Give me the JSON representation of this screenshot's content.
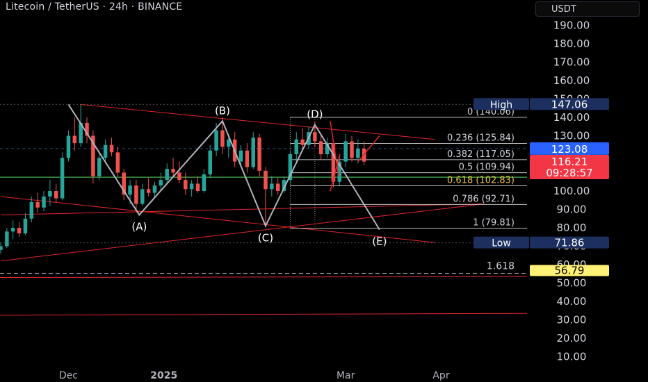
{
  "header": {
    "title": "Litecoin / TetherUS · 24h · BINANCE",
    "currency": "USDT"
  },
  "colors": {
    "background": "#000000",
    "up": "#26a69a",
    "down": "#ef5350",
    "trendline": "#e0262d",
    "wave_line": "#b2b5be",
    "fib_line": "#bfbfbf",
    "green_line": "#4caf50",
    "high_label": "#1c2f5e",
    "price_label": "#2962ff",
    "current_label": "#f23645",
    "fib_ext_label": "#fff176"
  },
  "chart_data": {
    "type": "candlestick",
    "title": "Litecoin / TetherUS · 24h · BINANCE",
    "y_axis": {
      "ticks": [
        10,
        20,
        30,
        40,
        50,
        60,
        70,
        80,
        90,
        100,
        110,
        120,
        130,
        140,
        150,
        160,
        170,
        180,
        190
      ],
      "tick_labels": [
        "10.00",
        "20.00",
        "30.00",
        "40.00",
        "50.00",
        "60.00",
        "70.00",
        "80.00",
        "90.00",
        "100.00",
        "110.00",
        "120.00",
        "130.00",
        "140.00",
        "150.00",
        "160.00",
        "170.00",
        "180.00",
        "190.00"
      ],
      "range": [
        5,
        198
      ]
    },
    "x_axis": {
      "labels": [
        {
          "text": "Dec",
          "date": "2024-12-01",
          "bold": false
        },
        {
          "text": "2025",
          "date": "2025-01-01",
          "bold": true
        },
        {
          "text": "Mar",
          "date": "2025-03-01",
          "bold": false
        },
        {
          "text": "Apr",
          "date": "2025-04-01",
          "bold": false
        }
      ],
      "range": [
        "2024-11-09",
        "2025-05-01"
      ]
    },
    "price_labels": [
      {
        "name": "High",
        "value": "147.06",
        "price": 147.06
      },
      {
        "name": "",
        "value": "123.08",
        "price": 123.08
      },
      {
        "name": "",
        "value": "116.21",
        "price": 116.21,
        "countdown": "09:28:57"
      },
      {
        "name": "Low",
        "value": "71.86",
        "price": 71.86
      },
      {
        "name": "",
        "value": "56.79",
        "price": 56.79
      }
    ],
    "fibonacci": [
      {
        "label": "0 (140.06)",
        "price": 140.06
      },
      {
        "label": "0.236 (125.84)",
        "price": 125.84
      },
      {
        "label": "0.382 (117.05)",
        "price": 117.05
      },
      {
        "label": "0.5 (109.94)",
        "price": 109.94
      },
      {
        "label": "0.618 (102.83)",
        "price": 102.83,
        "highlight": true
      },
      {
        "label": "0.786 (92.71)",
        "price": 92.71
      },
      {
        "label": "1 (79.81)",
        "price": 79.81
      }
    ],
    "fib_extension": {
      "label": "1.618",
      "price": 56.79
    },
    "waves": [
      {
        "label": "(A)",
        "date": "2024-12-24",
        "price": 87
      },
      {
        "label": "(B)",
        "date": "2025-01-20",
        "price": 138
      },
      {
        "label": "(C)",
        "date": "2025-02-03",
        "price": 81
      },
      {
        "label": "(D)",
        "date": "2025-02-19",
        "price": 136
      },
      {
        "label": "(E)",
        "date": "2025-03-12",
        "price": 79
      }
    ],
    "candles": [
      {
        "d": "2024-11-09",
        "o": 68,
        "h": 72,
        "l": 66,
        "c": 70
      },
      {
        "d": "2024-11-11",
        "o": 70,
        "h": 80,
        "l": 69,
        "c": 78
      },
      {
        "d": "2024-11-13",
        "o": 78,
        "h": 84,
        "l": 74,
        "c": 80
      },
      {
        "d": "2024-11-15",
        "o": 80,
        "h": 83,
        "l": 75,
        "c": 77
      },
      {
        "d": "2024-11-17",
        "o": 77,
        "h": 88,
        "l": 76,
        "c": 85
      },
      {
        "d": "2024-11-19",
        "o": 85,
        "h": 97,
        "l": 83,
        "c": 94
      },
      {
        "d": "2024-11-21",
        "o": 94,
        "h": 99,
        "l": 88,
        "c": 91
      },
      {
        "d": "2024-11-23",
        "o": 91,
        "h": 100,
        "l": 89,
        "c": 97
      },
      {
        "d": "2024-11-25",
        "o": 97,
        "h": 106,
        "l": 92,
        "c": 100
      },
      {
        "d": "2024-11-27",
        "o": 100,
        "h": 104,
        "l": 94,
        "c": 96
      },
      {
        "d": "2024-11-29",
        "o": 96,
        "h": 121,
        "l": 95,
        "c": 118
      },
      {
        "d": "2024-12-01",
        "o": 118,
        "h": 133,
        "l": 116,
        "c": 130
      },
      {
        "d": "2024-12-03",
        "o": 130,
        "h": 140,
        "l": 122,
        "c": 126
      },
      {
        "d": "2024-12-05",
        "o": 126,
        "h": 147,
        "l": 124,
        "c": 137
      },
      {
        "d": "2024-12-07",
        "o": 137,
        "h": 140,
        "l": 126,
        "c": 130
      },
      {
        "d": "2024-12-09",
        "o": 130,
        "h": 133,
        "l": 104,
        "c": 108
      },
      {
        "d": "2024-12-11",
        "o": 108,
        "h": 121,
        "l": 106,
        "c": 118
      },
      {
        "d": "2024-12-13",
        "o": 118,
        "h": 128,
        "l": 115,
        "c": 125
      },
      {
        "d": "2024-12-15",
        "o": 125,
        "h": 129,
        "l": 119,
        "c": 121
      },
      {
        "d": "2024-12-17",
        "o": 121,
        "h": 124,
        "l": 108,
        "c": 110
      },
      {
        "d": "2024-12-19",
        "o": 110,
        "h": 112,
        "l": 95,
        "c": 98
      },
      {
        "d": "2024-12-21",
        "o": 98,
        "h": 106,
        "l": 93,
        "c": 103
      },
      {
        "d": "2024-12-23",
        "o": 103,
        "h": 106,
        "l": 90,
        "c": 93
      },
      {
        "d": "2024-12-25",
        "o": 93,
        "h": 104,
        "l": 92,
        "c": 101
      },
      {
        "d": "2024-12-27",
        "o": 101,
        "h": 107,
        "l": 97,
        "c": 99
      },
      {
        "d": "2024-12-29",
        "o": 99,
        "h": 105,
        "l": 96,
        "c": 103
      },
      {
        "d": "2024-12-31",
        "o": 103,
        "h": 110,
        "l": 100,
        "c": 106
      },
      {
        "d": "2025-01-02",
        "o": 106,
        "h": 115,
        "l": 104,
        "c": 112
      },
      {
        "d": "2025-01-04",
        "o": 112,
        "h": 118,
        "l": 108,
        "c": 110
      },
      {
        "d": "2025-01-06",
        "o": 110,
        "h": 116,
        "l": 104,
        "c": 106
      },
      {
        "d": "2025-01-08",
        "o": 106,
        "h": 110,
        "l": 98,
        "c": 101
      },
      {
        "d": "2025-01-10",
        "o": 101,
        "h": 106,
        "l": 97,
        "c": 104
      },
      {
        "d": "2025-01-12",
        "o": 104,
        "h": 108,
        "l": 99,
        "c": 100
      },
      {
        "d": "2025-01-14",
        "o": 100,
        "h": 112,
        "l": 99,
        "c": 109
      },
      {
        "d": "2025-01-16",
        "o": 109,
        "h": 125,
        "l": 107,
        "c": 122
      },
      {
        "d": "2025-01-18",
        "o": 122,
        "h": 137,
        "l": 119,
        "c": 133
      },
      {
        "d": "2025-01-20",
        "o": 133,
        "h": 140,
        "l": 120,
        "c": 124
      },
      {
        "d": "2025-01-22",
        "o": 124,
        "h": 131,
        "l": 118,
        "c": 128
      },
      {
        "d": "2025-01-24",
        "o": 128,
        "h": 132,
        "l": 113,
        "c": 116
      },
      {
        "d": "2025-01-26",
        "o": 116,
        "h": 125,
        "l": 114,
        "c": 122
      },
      {
        "d": "2025-01-28",
        "o": 122,
        "h": 126,
        "l": 110,
        "c": 113
      },
      {
        "d": "2025-01-30",
        "o": 113,
        "h": 132,
        "l": 112,
        "c": 129
      },
      {
        "d": "2025-02-01",
        "o": 129,
        "h": 131,
        "l": 108,
        "c": 111
      },
      {
        "d": "2025-02-03",
        "o": 111,
        "h": 113,
        "l": 81,
        "c": 101
      },
      {
        "d": "2025-02-05",
        "o": 101,
        "h": 108,
        "l": 97,
        "c": 104
      },
      {
        "d": "2025-02-07",
        "o": 104,
        "h": 107,
        "l": 98,
        "c": 100
      },
      {
        "d": "2025-02-09",
        "o": 100,
        "h": 108,
        "l": 99,
        "c": 106
      },
      {
        "d": "2025-02-11",
        "o": 106,
        "h": 122,
        "l": 104,
        "c": 120
      },
      {
        "d": "2025-02-13",
        "o": 120,
        "h": 132,
        "l": 116,
        "c": 128
      },
      {
        "d": "2025-02-15",
        "o": 128,
        "h": 134,
        "l": 122,
        "c": 125
      },
      {
        "d": "2025-02-17",
        "o": 125,
        "h": 135,
        "l": 123,
        "c": 132
      },
      {
        "d": "2025-02-19",
        "o": 132,
        "h": 138,
        "l": 124,
        "c": 127
      },
      {
        "d": "2025-02-21",
        "o": 127,
        "h": 131,
        "l": 117,
        "c": 120
      },
      {
        "d": "2025-02-23",
        "o": 120,
        "h": 129,
        "l": 118,
        "c": 126
      },
      {
        "d": "2025-02-25",
        "o": 126,
        "h": 128,
        "l": 102,
        "c": 105
      },
      {
        "d": "2025-02-27",
        "o": 105,
        "h": 119,
        "l": 103,
        "c": 116
      },
      {
        "d": "2025-03-01",
        "o": 116,
        "h": 131,
        "l": 113,
        "c": 127
      },
      {
        "d": "2025-03-03",
        "o": 127,
        "h": 130,
        "l": 116,
        "c": 118
      },
      {
        "d": "2025-03-05",
        "o": 118,
        "h": 128,
        "l": 115,
        "c": 123
      },
      {
        "d": "2025-03-07",
        "o": 123,
        "h": 127,
        "l": 114,
        "c": 116
      }
    ],
    "grid": false
  }
}
